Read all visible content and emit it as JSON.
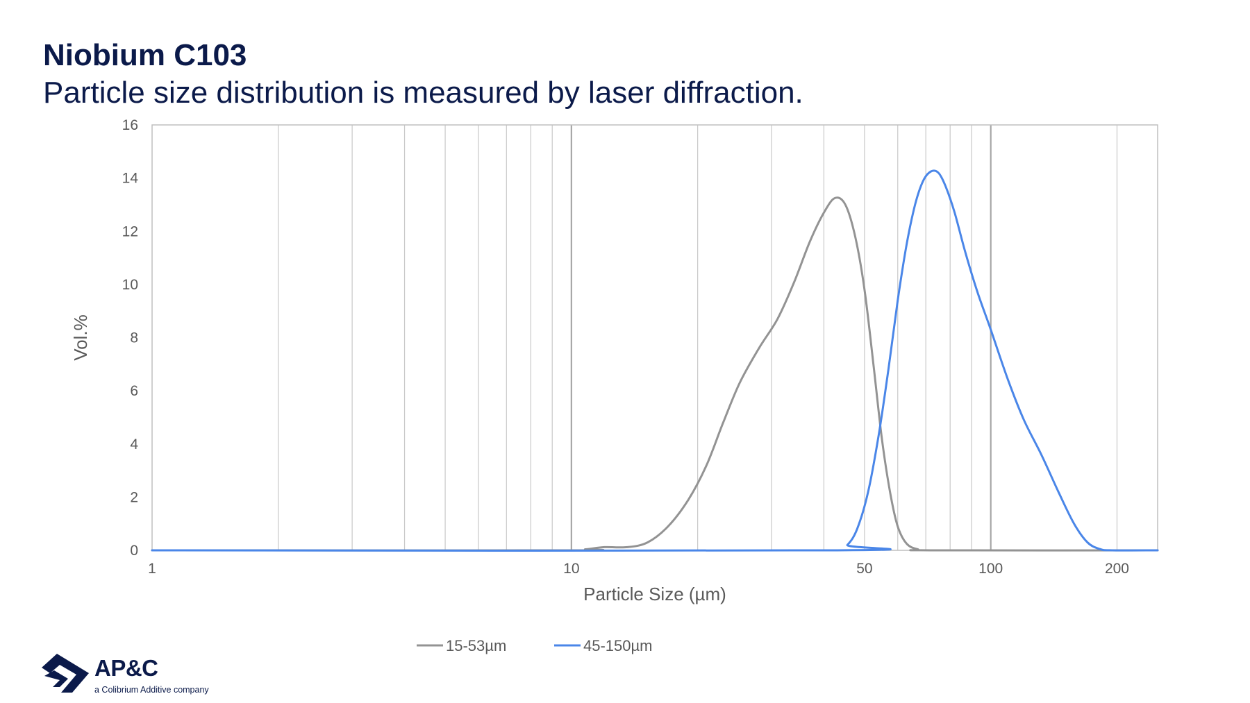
{
  "header": {
    "title": "Niobium C103",
    "subtitle": "Particle size distribution is measured by laser diffraction."
  },
  "logo": {
    "name": "AP&C",
    "tagline": "a Colibrium Additive company",
    "color": "#0b1a4a"
  },
  "chart_data": {
    "type": "line",
    "xlabel": "Particle Size (µm)",
    "ylabel": "Vol.%",
    "x_scale": "log",
    "xlim": [
      1,
      250
    ],
    "ylim": [
      0,
      16
    ],
    "x_tick_labels": [
      "1",
      "10",
      "50",
      "100",
      "200"
    ],
    "x_tick_values": [
      1,
      10,
      50,
      100,
      200
    ],
    "y_ticks": [
      0,
      2,
      4,
      6,
      8,
      10,
      12,
      14,
      16
    ],
    "grid": "vertical minor and major",
    "legend_position": "bottom",
    "series": [
      {
        "name": "15-53µm",
        "color": "#939393",
        "points": [
          [
            1,
            0
          ],
          [
            9.8,
            0
          ],
          [
            10.8,
            0.04
          ],
          [
            12,
            0.12
          ],
          [
            13.6,
            0.12
          ],
          [
            15.2,
            0.3
          ],
          [
            17,
            0.9
          ],
          [
            19,
            1.9
          ],
          [
            21,
            3.2
          ],
          [
            23,
            4.8
          ],
          [
            25.2,
            6.3
          ],
          [
            28,
            7.6
          ],
          [
            31,
            8.7
          ],
          [
            34,
            10.1
          ],
          [
            37,
            11.6
          ],
          [
            40,
            12.7
          ],
          [
            42.5,
            13.25
          ],
          [
            45,
            13.0
          ],
          [
            47.5,
            11.8
          ],
          [
            50,
            9.8
          ],
          [
            52.5,
            7.0
          ],
          [
            55,
            4.2
          ],
          [
            57.5,
            2.2
          ],
          [
            60,
            0.9
          ],
          [
            63,
            0.25
          ],
          [
            67,
            0.04
          ],
          [
            72,
            0
          ],
          [
            250,
            0
          ]
        ]
      },
      {
        "name": "45-150µm",
        "color": "#4a86e8",
        "points": [
          [
            1,
            0
          ],
          [
            43,
            0
          ],
          [
            45.5,
            0.2
          ],
          [
            48,
            0.8
          ],
          [
            51,
            2.2
          ],
          [
            54,
            4.3
          ],
          [
            57,
            6.8
          ],
          [
            60,
            9.4
          ],
          [
            63,
            11.5
          ],
          [
            66,
            13.0
          ],
          [
            69,
            13.9
          ],
          [
            72,
            14.25
          ],
          [
            75,
            14.2
          ],
          [
            78,
            13.7
          ],
          [
            82,
            12.7
          ],
          [
            87,
            11.2
          ],
          [
            93,
            9.7
          ],
          [
            100,
            8.3
          ],
          [
            110,
            6.4
          ],
          [
            120,
            4.9
          ],
          [
            132,
            3.6
          ],
          [
            145,
            2.2
          ],
          [
            158,
            1.0
          ],
          [
            170,
            0.3
          ],
          [
            182,
            0.05
          ],
          [
            195,
            0
          ],
          [
            250,
            0
          ]
        ]
      }
    ]
  }
}
